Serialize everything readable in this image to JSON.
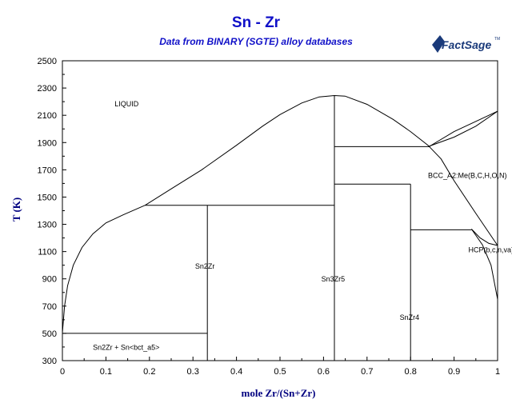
{
  "header": {
    "title": "Sn - Zr",
    "subtitle": "Data from BINARY (SGTE) alloy databases",
    "logo_text": "FactSage",
    "logo_tm": "TM"
  },
  "colors": {
    "title": "#1010c8",
    "axis_label": "#000080",
    "lines": "#000000",
    "logo": "#1a3a7a"
  },
  "chart_data": {
    "type": "line",
    "title": "Sn - Zr",
    "subtitle": "Data from BINARY (SGTE) alloy databases",
    "xlabel": "mole Zr/(Sn+Zr)",
    "ylabel": "T (K)",
    "xlim": [
      0,
      1
    ],
    "ylim": [
      300,
      2500
    ],
    "xticks": [
      0,
      0.1,
      0.2,
      0.3,
      0.4,
      0.5,
      0.6,
      0.7,
      0.8,
      0.9,
      1
    ],
    "xtick_labels": [
      "0",
      "0.1",
      "0.2",
      "0.3",
      "0.4",
      "0.5",
      "0.6",
      "0.7",
      "0.8",
      "0.9",
      "1"
    ],
    "yticks": [
      300,
      500,
      700,
      900,
      1100,
      1300,
      1500,
      1700,
      1900,
      2100,
      2300,
      2500
    ],
    "ytick_labels": [
      "300",
      "500",
      "700",
      "900",
      "1100",
      "1300",
      "1500",
      "1700",
      "1900",
      "2100",
      "2300",
      "2500"
    ],
    "grid": false,
    "lines": [
      {
        "x": [
          0,
          0.005,
          0.012,
          0.025,
          0.045,
          0.07,
          0.1,
          0.14,
          0.19
        ],
        "y": [
          505,
          700,
          850,
          1000,
          1130,
          1230,
          1310,
          1370,
          1440
        ]
      },
      {
        "x": [
          0.19,
          0.25,
          0.32,
          0.4,
          0.46,
          0.5,
          0.55,
          0.59,
          0.625,
          0.65
        ],
        "y": [
          1440,
          1560,
          1700,
          1880,
          2020,
          2105,
          2190,
          2235,
          2245,
          2240
        ]
      },
      {
        "x": [
          0.65,
          0.7,
          0.76,
          0.8,
          0.84,
          0.87,
          0.9,
          0.95,
          1
        ],
        "y": [
          2240,
          2180,
          2070,
          1980,
          1880,
          1780,
          1620,
          1380,
          1145
        ]
      },
      {
        "x": [
          0.84,
          0.9,
          0.95,
          1
        ],
        "y": [
          1870,
          1940,
          2020,
          2130
        ]
      },
      {
        "x": [
          0.845,
          0.9,
          0.96,
          1
        ],
        "y": [
          1875,
          1980,
          2070,
          2130
        ]
      },
      {
        "x": [
          0.94,
          0.96,
          0.98,
          1
        ],
        "y": [
          1265,
          1200,
          1160,
          1145
        ]
      },
      {
        "x": [
          0.94,
          0.965,
          0.985,
          1
        ],
        "y": [
          1265,
          1150,
          1000,
          750
        ]
      },
      {
        "x": [
          0,
          0.333
        ],
        "y": [
          500,
          500
        ]
      },
      {
        "x": [
          0.19,
          0.625
        ],
        "y": [
          1440,
          1440
        ]
      },
      {
        "x": [
          0.625,
          0.845
        ],
        "y": [
          1870,
          1870
        ]
      },
      {
        "x": [
          0.625,
          0.8
        ],
        "y": [
          1595,
          1595
        ]
      },
      {
        "x": [
          0.8,
          0.94
        ],
        "y": [
          1260,
          1260
        ]
      },
      {
        "x": [
          0.333,
          0.333
        ],
        "y": [
          300,
          1440
        ]
      },
      {
        "x": [
          0.625,
          0.625
        ],
        "y": [
          300,
          2245
        ]
      },
      {
        "x": [
          0.8,
          0.8
        ],
        "y": [
          300,
          1595
        ]
      }
    ],
    "annotations": [
      {
        "text": "LIQUID",
        "x": 0.12,
        "y": 2165
      },
      {
        "text": "Sn2Zr",
        "x": 0.305,
        "y": 975
      },
      {
        "text": "Sn3Zr5",
        "x": 0.595,
        "y": 880
      },
      {
        "text": "SnZr4",
        "x": 0.775,
        "y": 600
      },
      {
        "text": "BCC_A2:Me(B,C,H,O,N)",
        "x": 0.84,
        "y": 1640
      },
      {
        "text": "HCP(b,c,n,va)",
        "x": 0.933,
        "y": 1095
      },
      {
        "text": "Sn2Zr + Sn<bct_a5>",
        "x": 0.07,
        "y": 380
      }
    ]
  }
}
